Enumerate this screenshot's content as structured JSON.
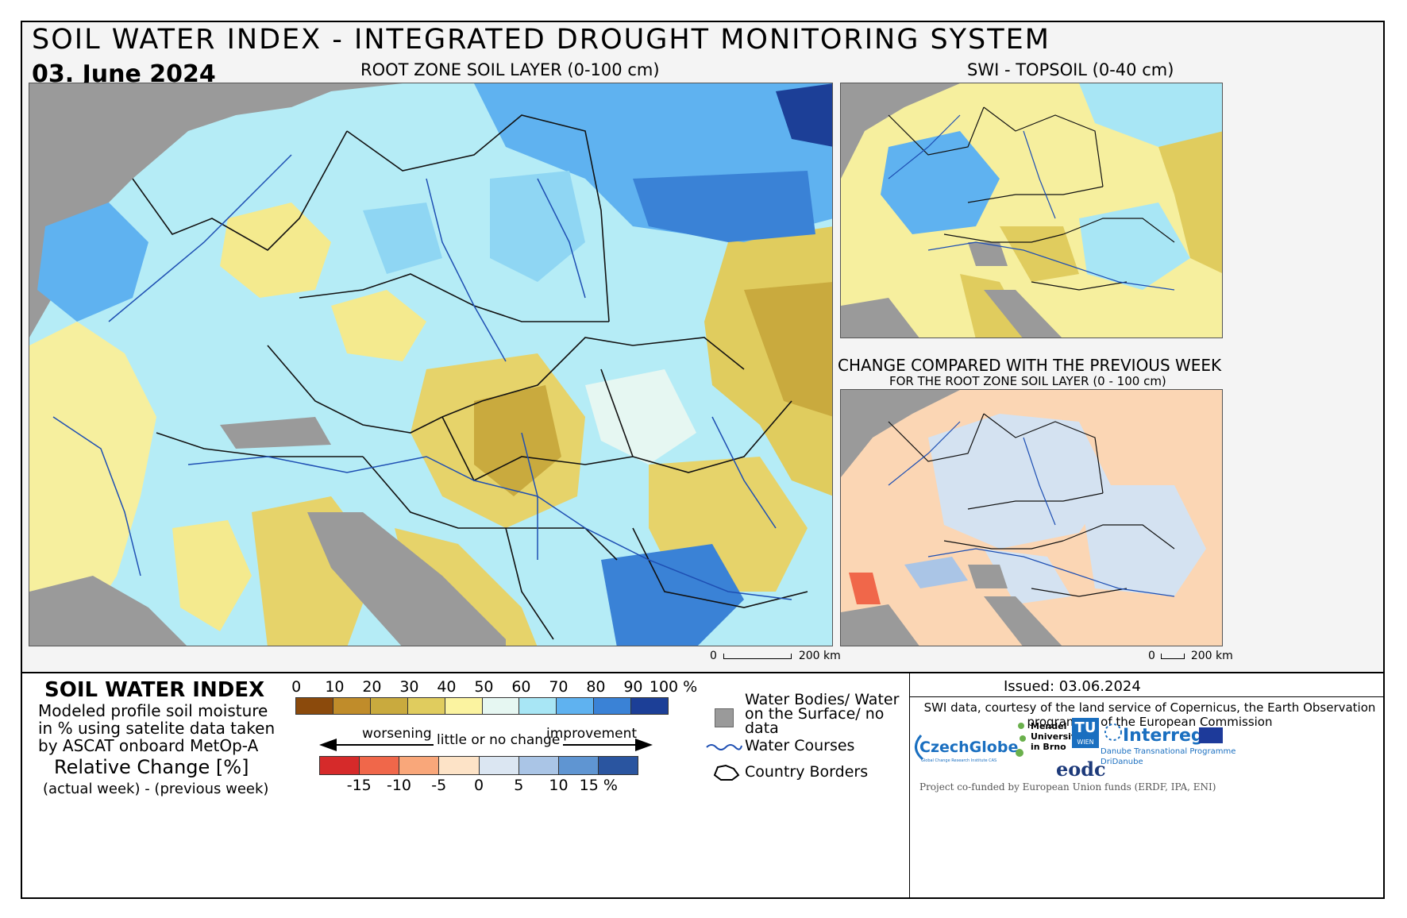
{
  "header": {
    "title": "SOIL WATER INDEX - INTEGRATED DROUGHT MONITORING SYSTEM",
    "date": "03. June 2024"
  },
  "maps": {
    "main_caption": "ROOT ZONE SOIL LAYER (0-100 cm)",
    "topsoil_caption": "SWI - TOPSOIL (0-40 cm)",
    "change_caption": "CHANGE COMPARED WITH THE PREVIOUS WEEK",
    "change_subcaption": "FOR THE ROOT ZONE SOIL LAYER (0 - 100 cm)",
    "scale_main": {
      "zero": "0",
      "end": "200 km"
    },
    "scale_small": {
      "zero": "0",
      "end": "200 km"
    }
  },
  "legend": {
    "swi_title": "SOIL WATER INDEX",
    "swi_description": "Modeled profile soil moisture in % using satelite data taken by ASCAT onboard MetOp-A",
    "rel_title": "Relative Change [%]",
    "rel_subtitle": "(actual week) - (previous week)",
    "swi_ticks": [
      "0",
      "10",
      "20",
      "30",
      "40",
      "50",
      "60",
      "70",
      "80",
      "90",
      "100 %"
    ],
    "swi_colors": [
      "#8b4a0c",
      "#c08c2a",
      "#c9aa3e",
      "#e0cc5e",
      "#fbf3a0",
      "#e6f7f2",
      "#a8e6f5",
      "#5fb2f0",
      "#3a82d6",
      "#1c3f97"
    ],
    "worsening": "worsening",
    "little_change": "little or no change",
    "improvement": "improvement",
    "change_ticks": [
      "-15",
      "-10",
      "-5",
      "0",
      "5",
      "10",
      "15 %"
    ],
    "change_colors": [
      "#d62a2a",
      "#f0674a",
      "#f9a77a",
      "#fde3c7",
      "#dbe6f2",
      "#aac5e6",
      "#5f95d2",
      "#2a55a0"
    ],
    "water_bodies": "Water Bodies/ Water on the Surface/ no data",
    "water_courses": "Water Courses",
    "country_borders": "Country Borders",
    "colors": {
      "nodata": "#9a9a9a",
      "river": "#1e4fb3"
    }
  },
  "info": {
    "issued": "Issued: 03.06.2024",
    "credit": "SWI data, courtesy of the land service of Copernicus, the Earth Observation programme of the European Commission",
    "cofunded": "Project co-funded by European Union funds (ERDF, IPA, ENI)",
    "logos": {
      "czechglobe": "CzechGlobe",
      "czechglobe_sub": "Global Change Research Institute CAS",
      "mendel": "Mendel University in Brno",
      "tu": "TU",
      "wien": "WIEN",
      "eodc": "eodc",
      "interreg": "Interreg",
      "interreg_sub1": "Danube Transnational Programme",
      "interreg_sub2": "DriDanube"
    }
  }
}
